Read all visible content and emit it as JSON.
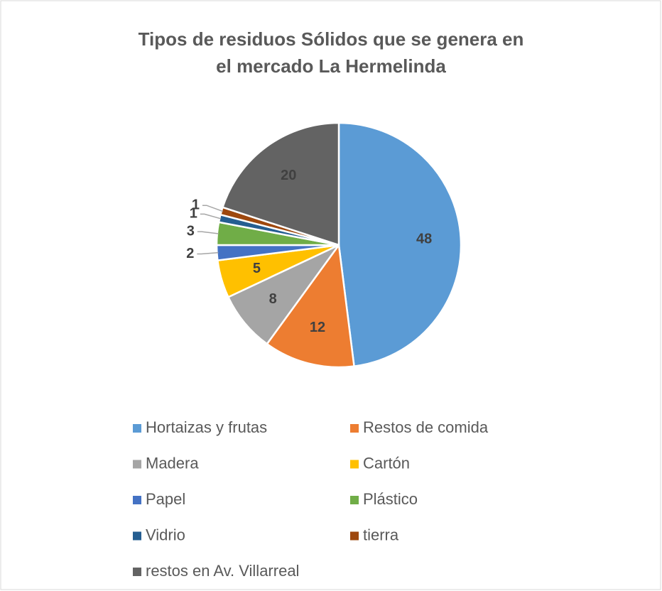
{
  "chart_data": {
    "type": "pie",
    "title": "Tipos de residuos Sólidos que se genera en el mercado La Hermelinda",
    "categories": [
      "Hortaizas y frutas",
      "Restos de comida",
      "Madera",
      "Cartón",
      "Papel",
      "Plástico",
      "Vidrio",
      "tierra",
      "restos en Av. Villarreal"
    ],
    "values": [
      48,
      12,
      8,
      5,
      2,
      3,
      1,
      1,
      20
    ],
    "colors": [
      "#5b9bd5",
      "#ed7d31",
      "#a5a5a5",
      "#ffc000",
      "#4472c4",
      "#70ad47",
      "#255e91",
      "#9e480e",
      "#636363"
    ],
    "legend": "bottom"
  }
}
